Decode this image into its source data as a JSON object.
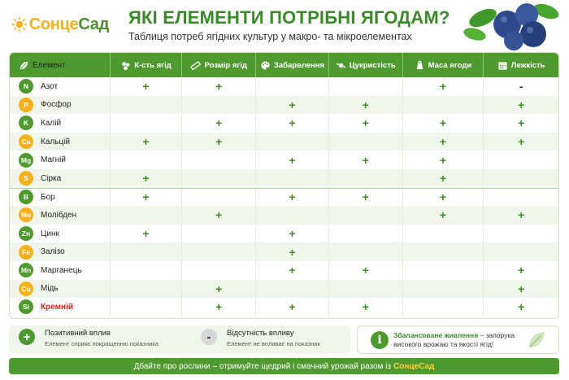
{
  "brand": {
    "name_part1": "Сонце",
    "name_part2": "Сад"
  },
  "header": {
    "title": "ЯКІ ЕЛЕМЕНТИ ПОТРІБНІ ЯГОДАМ?",
    "subtitle": "Таблиця потреб ягідних культур у макро- та мікроелементах"
  },
  "columns": [
    {
      "label": "Елемент",
      "icon": "leaf-icon"
    },
    {
      "label": "К-сть ягід",
      "icon": "berries-icon"
    },
    {
      "label": "Розмір ягід",
      "icon": "ruler-icon"
    },
    {
      "label": "Забарвлення",
      "icon": "palette-icon"
    },
    {
      "label": "Цукристість",
      "icon": "candy-icon"
    },
    {
      "label": "Маса ягоди",
      "icon": "scale-icon"
    },
    {
      "label": "Лежкість",
      "icon": "calendar-icon"
    }
  ],
  "rows": [
    {
      "symbol": "N",
      "name": "Азот",
      "badge": "green",
      "marks": [
        "+",
        "+",
        "",
        "",
        "+",
        "-"
      ]
    },
    {
      "symbol": "P",
      "name": "Фосфор",
      "badge": "yellow",
      "marks": [
        "",
        "",
        "+",
        "+",
        "",
        "+"
      ]
    },
    {
      "symbol": "K",
      "name": "Калій",
      "badge": "green",
      "marks": [
        "",
        "+",
        "+",
        "+",
        "+",
        "+"
      ]
    },
    {
      "symbol": "Ca",
      "name": "Кальцій",
      "badge": "yellow",
      "marks": [
        "+",
        "+",
        "",
        "",
        "+",
        "+"
      ]
    },
    {
      "symbol": "Mg",
      "name": "Магній",
      "badge": "green",
      "marks": [
        "",
        "",
        "+",
        "+",
        "+",
        ""
      ]
    },
    {
      "symbol": "S",
      "name": "Сірка",
      "badge": "yellow",
      "marks": [
        "+",
        "",
        "",
        "",
        "+",
        ""
      ]
    },
    {
      "symbol": "B",
      "name": "Бор",
      "badge": "green",
      "marks": [
        "+",
        "",
        "+",
        "+",
        "+",
        ""
      ]
    },
    {
      "symbol": "Mo",
      "name": "Молібден",
      "badge": "yellow",
      "marks": [
        "",
        "+",
        "",
        "",
        "+",
        "+"
      ]
    },
    {
      "symbol": "Zn",
      "name": "Цинк",
      "badge": "green",
      "marks": [
        "+",
        "",
        "+",
        "",
        "",
        ""
      ]
    },
    {
      "symbol": "Fe",
      "name": "Залізо",
      "badge": "yellow",
      "marks": [
        "",
        "",
        "+",
        "",
        "",
        ""
      ]
    },
    {
      "symbol": "Mn",
      "name": "Марганець",
      "badge": "green",
      "marks": [
        "",
        "",
        "+",
        "+",
        "",
        "+"
      ]
    },
    {
      "symbol": "Cu",
      "name": "Мідь",
      "badge": "yellow",
      "marks": [
        "",
        "+",
        "",
        "",
        "",
        "+"
      ]
    },
    {
      "symbol": "Si",
      "name": "Кремній",
      "badge": "green",
      "highlight": true,
      "marks": [
        "",
        "+",
        "+",
        "+",
        "",
        "+"
      ]
    }
  ],
  "legend": {
    "positive_title": "Позитивний вплив",
    "positive_desc": "Елемент сприяє покращенню показника",
    "none_title": "Відсутність впливу",
    "none_desc": "Елемент не впливає на показник",
    "info_strong": "Збалансоване живлення",
    "info_rest": " – запорука високого врожаю та якості ягід!"
  },
  "footer": {
    "text": "Дбайте про рослини – отримуйте щедрий і смачний урожай разом із",
    "brand": "СонцеСад"
  }
}
